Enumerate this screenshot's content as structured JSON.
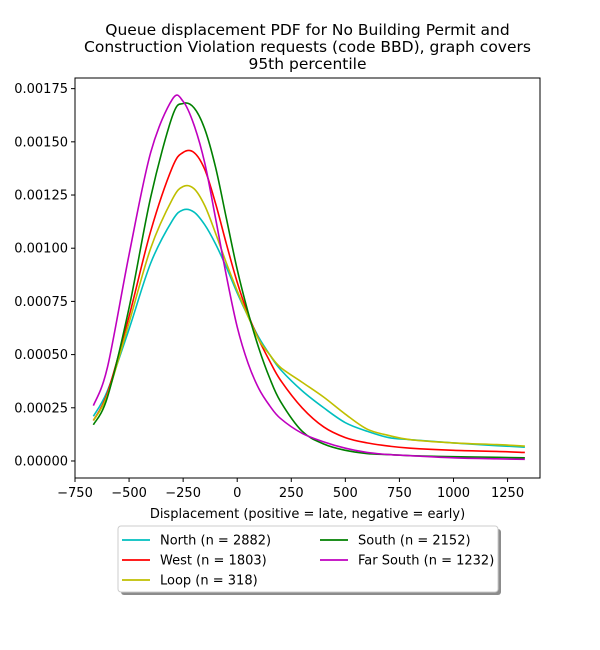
{
  "chart_data": {
    "type": "line",
    "title_lines": [
      "Queue displacement PDF for No Building Permit and",
      "Construction Violation  requests (code BBD), graph covers",
      "95th percentile"
    ],
    "xlabel": "Displacement (positive = late, negative = early)",
    "ylabel": "",
    "xlim": [
      -750,
      1400
    ],
    "ylim": [
      -8e-05,
      0.0018
    ],
    "x_ticks": [
      -750,
      -500,
      -250,
      0,
      250,
      500,
      750,
      1000,
      1250
    ],
    "x_tick_labels": [
      "−750",
      "−500",
      "−250",
      "0",
      "250",
      "500",
      "750",
      "1000",
      "1250"
    ],
    "y_ticks": [
      0,
      0.00025,
      0.0005,
      0.00075,
      0.001,
      0.00125,
      0.0015,
      0.00175
    ],
    "y_tick_labels": [
      "0.00000",
      "0.00025",
      "0.00050",
      "0.00075",
      "0.00100",
      "0.00125",
      "0.00150",
      "0.00175"
    ],
    "grid": false,
    "legend_position": "below",
    "legend_columns": 2,
    "x": [
      -665,
      -600,
      -500,
      -400,
      -300,
      -250,
      -200,
      -150,
      -100,
      -50,
      0,
      50,
      100,
      150,
      200,
      300,
      400,
      500,
      600,
      700,
      800,
      1000,
      1200,
      1330
    ],
    "series": [
      {
        "name": "North (n = 2882)",
        "color": "#00bfbf",
        "values": [
          0.00021,
          0.00033,
          0.00062,
          0.00093,
          0.00113,
          0.00118,
          0.00117,
          0.00111,
          0.00102,
          0.00091,
          0.00079,
          0.00068,
          0.00058,
          0.0005,
          0.00043,
          0.00033,
          0.00025,
          0.00018,
          0.00014,
          0.00011,
          0.0001,
          8.5e-05,
          7.2e-05,
          6.5e-05
        ]
      },
      {
        "name": "West (n = 1803)",
        "color": "#ff0000",
        "values": [
          0.00019,
          0.00032,
          0.00068,
          0.00108,
          0.00138,
          0.00145,
          0.00145,
          0.00137,
          0.00121,
          0.00102,
          0.00084,
          0.00069,
          0.00057,
          0.00047,
          0.00038,
          0.00025,
          0.00016,
          0.00011,
          8.5e-05,
          7e-05,
          6e-05,
          5e-05,
          4.5e-05,
          4e-05
        ]
      },
      {
        "name": "Loop (n = 318)",
        "color": "#bfbf00",
        "values": [
          0.00019,
          0.00031,
          0.00065,
          0.001,
          0.00123,
          0.00129,
          0.00128,
          0.0012,
          0.00107,
          0.00093,
          0.0008,
          0.00068,
          0.00057,
          0.0005,
          0.00044,
          0.00037,
          0.0003,
          0.00022,
          0.00015,
          0.00012,
          0.0001,
          8.5e-05,
          7.7e-05,
          7e-05
        ]
      },
      {
        "name": "South (n = 2152)",
        "color": "#008000",
        "values": [
          0.00017,
          0.0003,
          0.00072,
          0.00124,
          0.00162,
          0.00168,
          0.00166,
          0.00156,
          0.00138,
          0.00114,
          0.0009,
          0.0007,
          0.00053,
          0.00039,
          0.00028,
          0.00014,
          8e-05,
          5e-05,
          3.5e-05,
          3e-05,
          2.5e-05,
          2e-05,
          1.7e-05,
          1.5e-05
        ]
      },
      {
        "name": "Far South (n = 1232)",
        "color": "#bf00bf",
        "values": [
          0.00026,
          0.00044,
          0.00097,
          0.00145,
          0.0017,
          0.00169,
          0.00158,
          0.0014,
          0.00114,
          0.00087,
          0.00063,
          0.00046,
          0.00034,
          0.00026,
          0.0002,
          0.00013,
          9e-05,
          6e-05,
          4e-05,
          3e-05,
          2.5e-05,
          1.5e-05,
          1e-05,
          8e-06
        ]
      }
    ]
  }
}
